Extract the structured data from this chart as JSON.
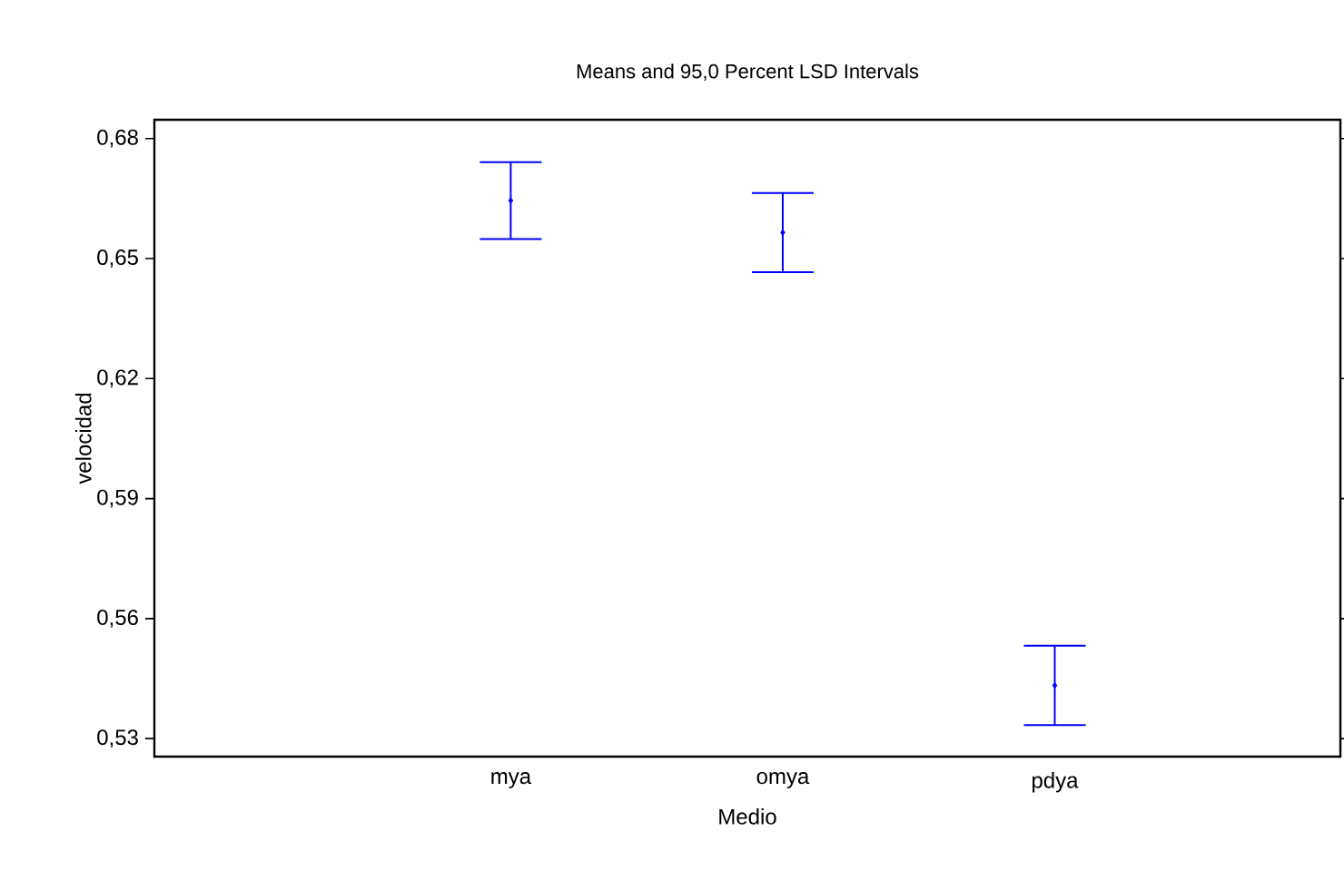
{
  "chart_data": {
    "type": "scatter",
    "title": "Means and 95,0 Percent LSD Intervals",
    "xlabel": "Medio",
    "ylabel": "velocidad",
    "categories": [
      "mya",
      "omya",
      "pdya"
    ],
    "values": [
      0.6645,
      0.6565,
      0.5433
    ],
    "errors": [
      0.0096,
      0.0099,
      0.0099
    ],
    "color": "#0000ff",
    "marker": "diamond",
    "ylim": [
      0.5255,
      0.6847
    ],
    "yticks": [
      {
        "value": 0.53,
        "label": "0,53"
      },
      {
        "value": 0.56,
        "label": "0,56"
      },
      {
        "value": 0.59,
        "label": "0,59"
      },
      {
        "value": 0.62,
        "label": "0,62"
      },
      {
        "value": 0.65,
        "label": "0,65"
      },
      {
        "value": 0.68,
        "label": "0,68"
      }
    ]
  }
}
